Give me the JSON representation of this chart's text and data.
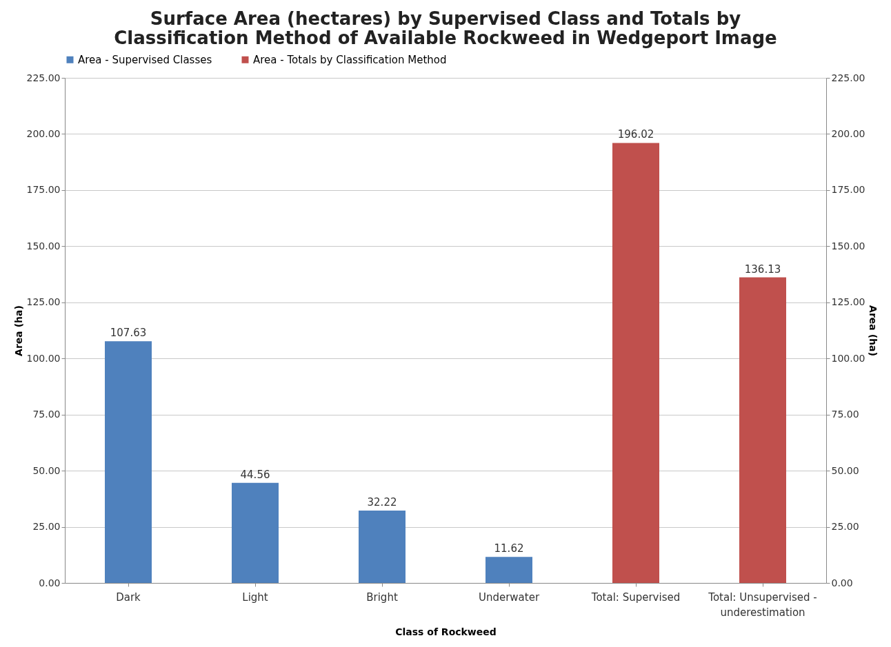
{
  "chart_data": {
    "type": "bar",
    "title": "Surface Area (hectares) by Supervised Class and Totals by\nClassification Method of Available Rockweed in Wedgeport Image",
    "xlabel": "Class of Rockweed",
    "ylabel": "Area (ha)",
    "y2label": "Area (ha)",
    "categories": [
      "Dark",
      "Light",
      "Bright",
      "Underwater",
      "Total: Supervised",
      "Total: Unsupervised -\nunderestimation"
    ],
    "series": [
      {
        "name": "Area - Supervised Classes",
        "color": "#4f81bd",
        "values": [
          107.63,
          44.56,
          32.22,
          11.62,
          null,
          null
        ]
      },
      {
        "name": "Area - Totals by Classification Method",
        "color": "#c0504d",
        "axis": "y2",
        "values": [
          null,
          null,
          null,
          null,
          196.02,
          136.13
        ]
      }
    ],
    "ylim": [
      0,
      225
    ],
    "yticks": [
      {
        "value": 0,
        "label": "0.00"
      },
      {
        "value": 25,
        "label": "25.00"
      },
      {
        "value": 50,
        "label": "50.00"
      },
      {
        "value": 75,
        "label": "75.00"
      },
      {
        "value": 100,
        "label": "100.00"
      },
      {
        "value": 125,
        "label": "125.00"
      },
      {
        "value": 150,
        "label": "150.00"
      },
      {
        "value": 175,
        "label": "175.00"
      },
      {
        "value": 200,
        "label": "200.00"
      },
      {
        "value": 225,
        "label": "225.00"
      }
    ],
    "y2lim": [
      0,
      225
    ],
    "y2ticks": [
      {
        "value": 0,
        "label": "0.00"
      },
      {
        "value": 25,
        "label": "25.00"
      },
      {
        "value": 50,
        "label": "50.00"
      },
      {
        "value": 75,
        "label": "75.00"
      },
      {
        "value": 100,
        "label": "100.00"
      },
      {
        "value": 125,
        "label": "125.00"
      },
      {
        "value": 150,
        "label": "150.00"
      },
      {
        "value": 175,
        "label": "175.00"
      },
      {
        "value": 200,
        "label": "200.00"
      },
      {
        "value": 225,
        "label": "225.00"
      }
    ],
    "data_labels": true,
    "grid": "y",
    "legend": "top"
  }
}
